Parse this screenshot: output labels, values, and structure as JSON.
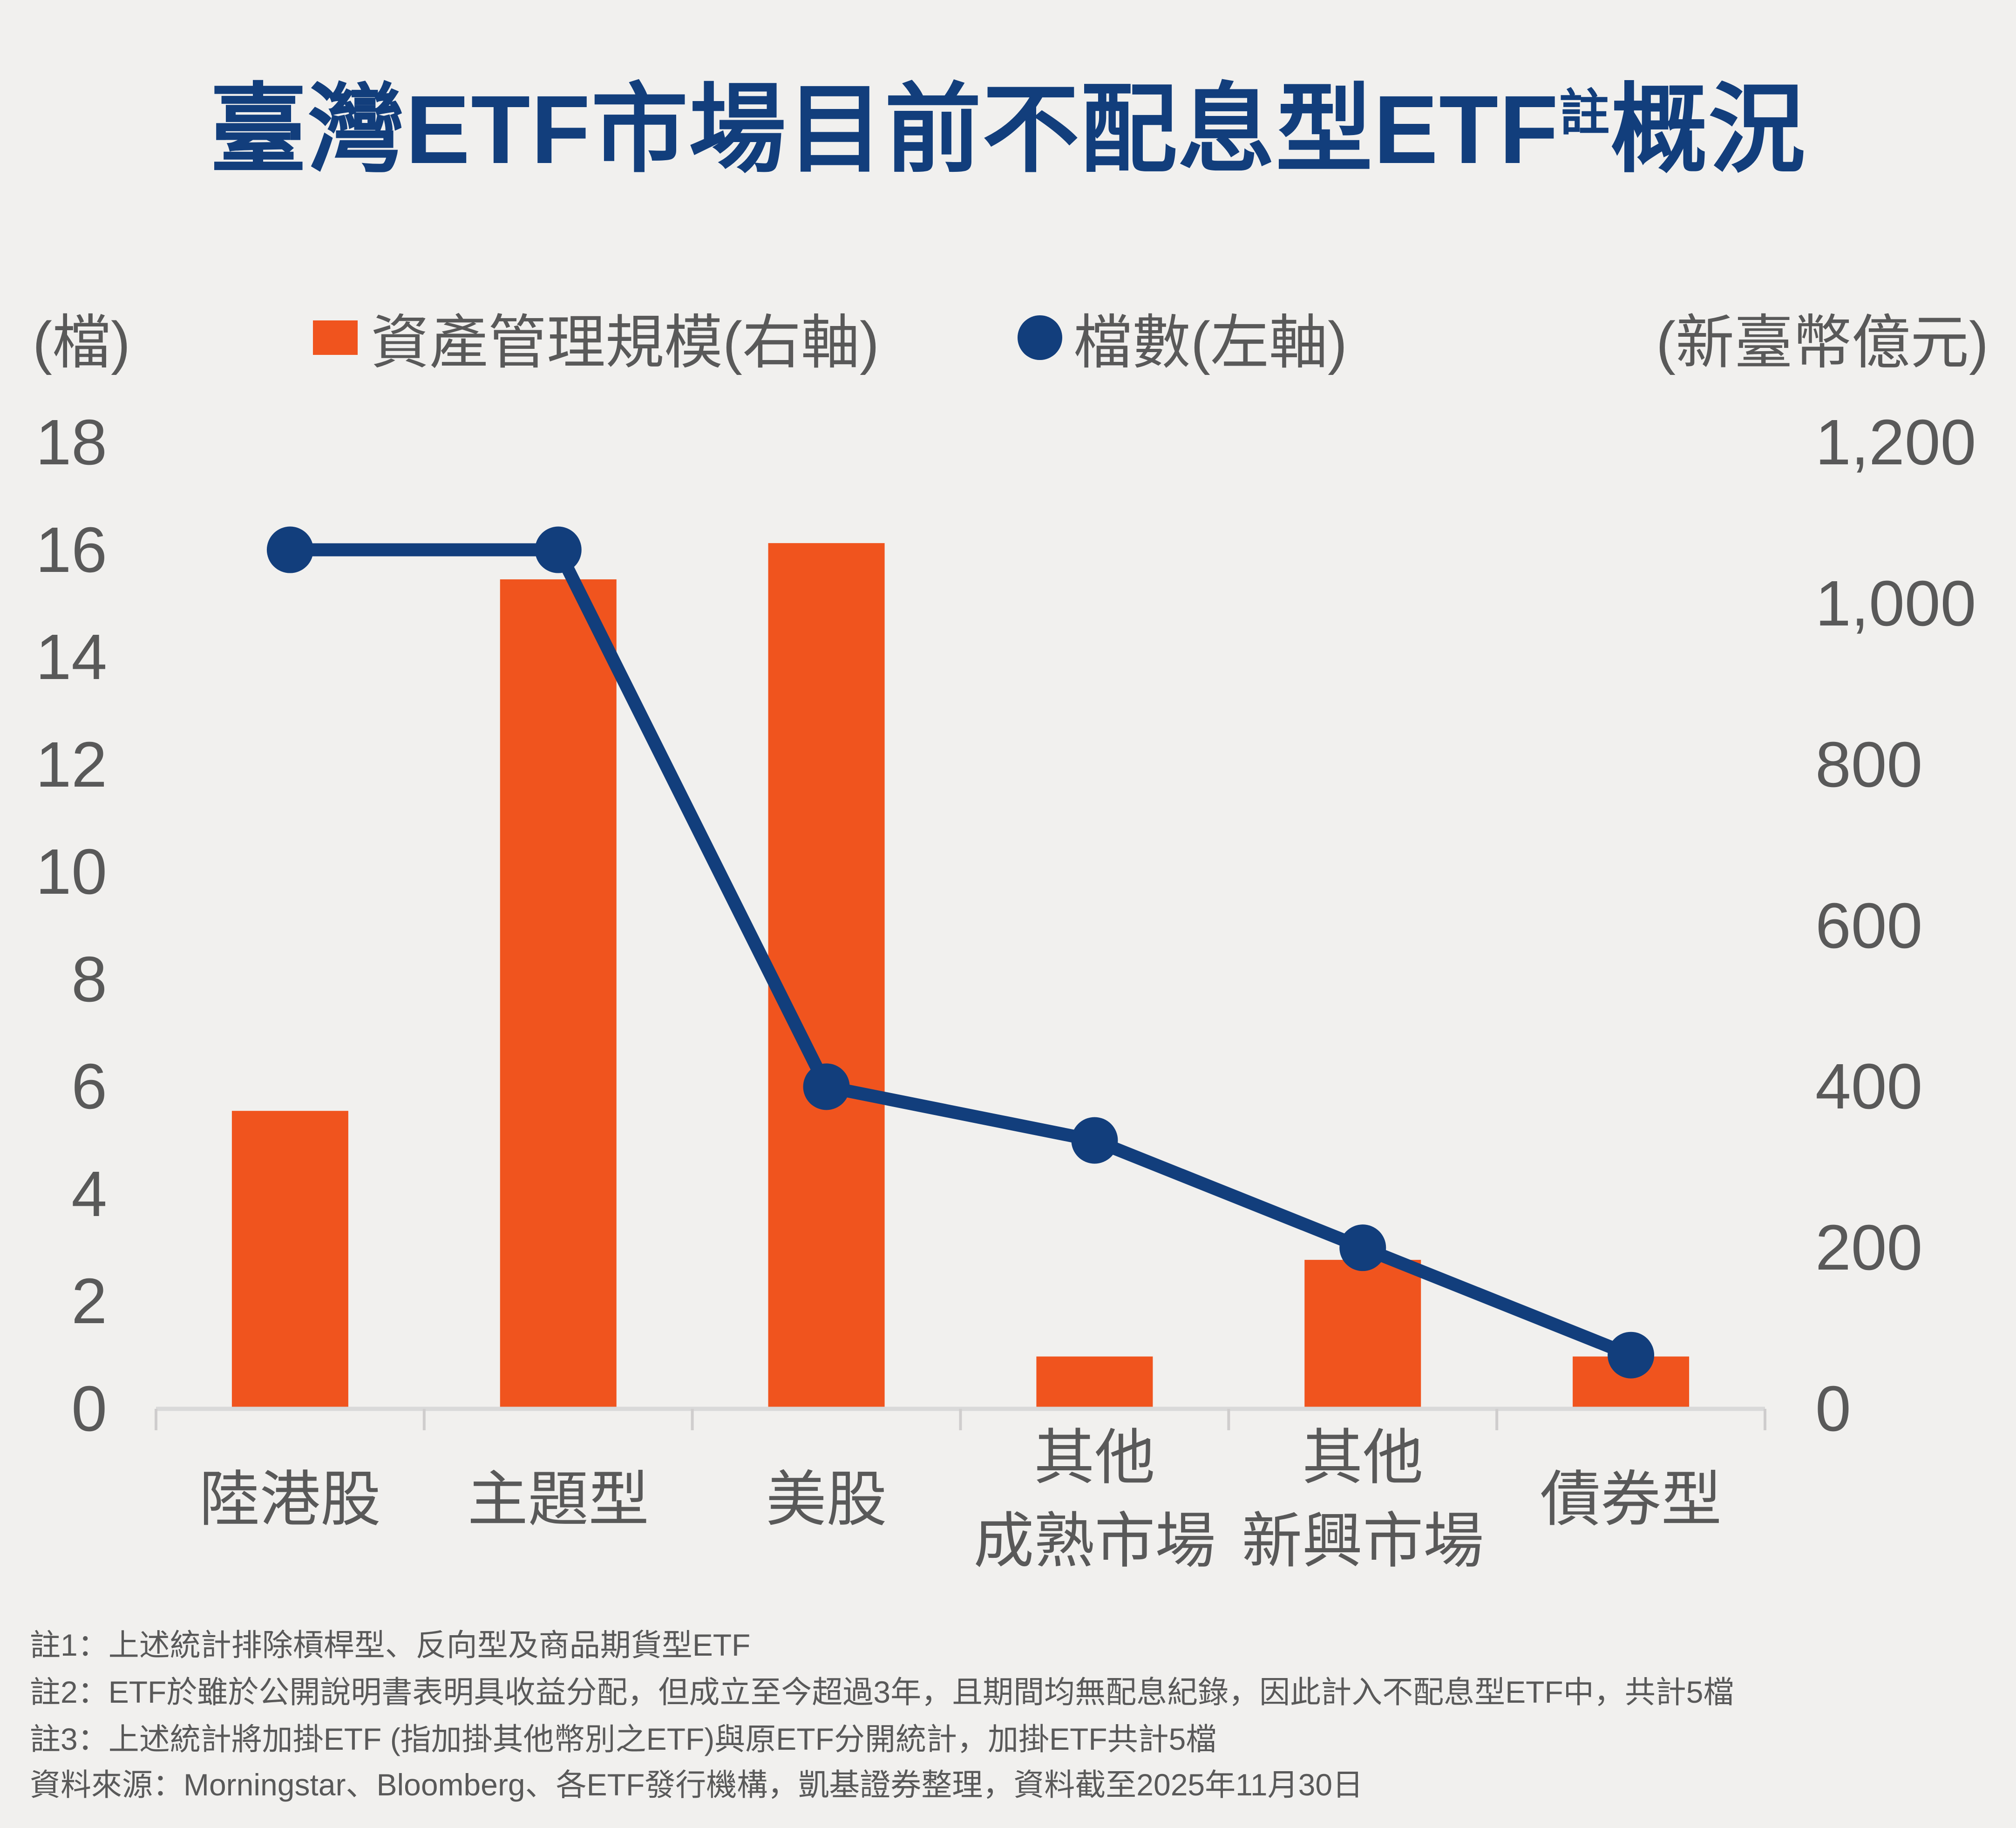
{
  "page": {
    "background": "#F1F0EE"
  },
  "title": {
    "text_before_sup": "臺灣ETF市場目前不配息型ETF",
    "sup": "註",
    "text_after_sup": "概況",
    "color": "#123E7C"
  },
  "header": {
    "left_axis_unit": "(檔)",
    "right_axis_unit": "(新臺幣億元)"
  },
  "legend": {
    "items": [
      {
        "label": "資產管理規模(右軸)",
        "marker": "square",
        "color": "#F0541E"
      },
      {
        "label": "檔數(左軸)",
        "marker": "circle",
        "color": "#123E7C"
      }
    ]
  },
  "chart_data": {
    "type": "bar",
    "subtype": "bar-line-combo",
    "title": "臺灣ETF市場目前不配息型ETF註概況",
    "categories": [
      "陸港股",
      "主題型",
      "美股",
      "其他\n成熟市場",
      "其他\n新興市場",
      "債券型"
    ],
    "series": [
      {
        "name": "資產管理規模(右軸)",
        "chart": "bar",
        "axis": "right",
        "unit": "新臺幣億元",
        "values": [
          370,
          1030,
          1075,
          65,
          185,
          65
        ],
        "color": "#F0541E"
      },
      {
        "name": "檔數(左軸)",
        "chart": "line",
        "axis": "left",
        "unit": "檔",
        "values": [
          16,
          16,
          6,
          5,
          3,
          1
        ],
        "color": "#123E7C"
      }
    ],
    "left_axis": {
      "unit": "(檔)",
      "min": 0,
      "max": 18,
      "step": 2,
      "tick_labels": [
        "18",
        "16",
        "14",
        "12",
        "10",
        "8",
        "6",
        "4",
        "2",
        "0"
      ],
      "tick_values": [
        18,
        16,
        14,
        12,
        10,
        8,
        6,
        4,
        2,
        0
      ]
    },
    "right_axis": {
      "unit": "(新臺幣億元)",
      "min": 0,
      "max": 1200,
      "step": 200,
      "tick_labels": [
        "1,200",
        "1,000",
        "800",
        "600",
        "400",
        "200",
        "0"
      ],
      "tick_values": [
        1200,
        1000,
        800,
        600,
        400,
        200,
        0
      ]
    },
    "grid": false,
    "legend_position": "top"
  },
  "footnotes": [
    "註1：上述統計排除槓桿型、反向型及商品期貨型ETF",
    "註2：ETF於雖於公開說明書表明具收益分配，但成立至今超過3年，且期間均無配息紀錄，因此計入不配息型ETF中，共計5檔",
    "註3：上述統計將加掛ETF (指加掛其他幣別之ETF)與原ETF分開統計，加掛ETF共計5檔"
  ],
  "source": "資料來源：Morningstar、Bloomberg、各ETF發行機構，凱基證券整理，資料截至2025年11月30日",
  "colors": {
    "background": "#F1F0EE",
    "navy": "#123E7C",
    "orange": "#F0541E",
    "text_gray": "#595959",
    "axis_line": "#D9D9D9",
    "axis_tick": "#CFCDCD"
  }
}
